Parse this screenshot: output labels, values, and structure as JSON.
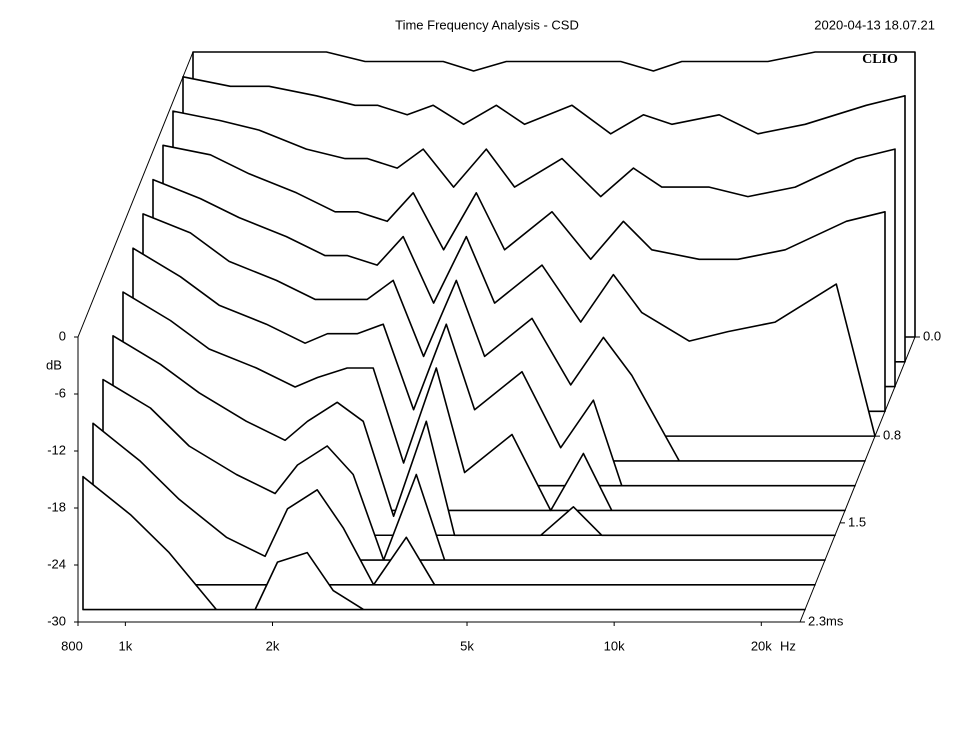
{
  "chart_data": {
    "type": "waterfall",
    "title": "Time Frequency Analysis - CSD",
    "date": "2020-04-13 18.07.21",
    "brand": "CLIO",
    "ylabel": "dB",
    "x_unit": "Hz",
    "z_unit": "ms",
    "log_x": true,
    "color": "#000000",
    "xlim": [
      800,
      24000
    ],
    "xticks": [
      800,
      {
        "value": 1000,
        "label": "1k"
      },
      {
        "value": 2000,
        "label": "2k"
      },
      {
        "value": 5000,
        "label": "5k"
      },
      {
        "value": 10000,
        "label": "10k"
      },
      {
        "value": 20000,
        "label": "20k"
      }
    ],
    "ylim": [
      -30,
      0
    ],
    "yticks": [
      0,
      -6,
      -12,
      -18,
      -24,
      -30
    ],
    "zlim": [
      0,
      2.3
    ],
    "zticks": [
      {
        "value": 0,
        "label": "0.0"
      },
      0.8,
      1.5,
      2.3
    ],
    "x": [
      800,
      1000,
      1200,
      1500,
      1800,
      2000,
      2300,
      2600,
      3000,
      3500,
      4000,
      5000,
      6000,
      7000,
      8000,
      10000,
      12000,
      15000,
      20000,
      24000
    ],
    "series": [
      {
        "time": 0.0,
        "values": [
          0,
          0,
          0,
          0,
          -1,
          -1,
          -1,
          -1,
          -2,
          -1,
          -1,
          -1,
          -1,
          -2,
          -1,
          -1,
          -1,
          0,
          0,
          0
        ]
      },
      {
        "time": 0.2,
        "values": [
          0,
          -1,
          -1,
          -2,
          -3,
          -3,
          -4,
          -3,
          -5,
          -3,
          -5,
          -3,
          -6,
          -4,
          -5,
          -4,
          -6,
          -5,
          -3,
          -2
        ]
      },
      {
        "time": 0.4,
        "values": [
          -1,
          -2,
          -3,
          -5,
          -6,
          -6,
          -7,
          -5,
          -9,
          -5,
          -9,
          -6,
          -10,
          -7,
          -9,
          -9,
          -10,
          -9,
          -6,
          -5
        ]
      },
      {
        "time": 0.6,
        "values": [
          -2,
          -3,
          -5,
          -7,
          -9,
          -9,
          -10,
          -7,
          -13,
          -7,
          -13,
          -9,
          -14,
          -10,
          -13,
          -14,
          -14,
          -13,
          -10,
          -9
        ]
      },
      {
        "time": 0.8,
        "values": [
          -3,
          -5,
          -7,
          -9,
          -11,
          -11,
          -12,
          -9,
          -16,
          -9,
          -16,
          -12,
          -18,
          -13,
          -17,
          -20,
          -19,
          -18,
          -14,
          -30
        ]
      },
      {
        "time": 1.0,
        "values": [
          -4,
          -6,
          -9,
          -11,
          -13,
          -13,
          -13,
          -11,
          -19,
          -11,
          -19,
          -15,
          -22,
          -17,
          -21,
          -30,
          -30,
          -30,
          -30,
          -30
        ]
      },
      {
        "time": 1.2,
        "values": [
          -5,
          -8,
          -11,
          -13,
          -15,
          -14,
          -14,
          -13,
          -22,
          -13,
          -22,
          -18,
          -26,
          -21,
          -30,
          -30,
          -30,
          -30,
          -30,
          -30
        ]
      },
      {
        "time": 1.4,
        "values": [
          -7,
          -10,
          -13,
          -15,
          -17,
          -16,
          -15,
          -15,
          -25,
          -15,
          -26,
          -22,
          -30,
          -24,
          -30,
          -30,
          -30,
          -30,
          -30,
          -30
        ]
      },
      {
        "time": 1.6,
        "values": [
          -9,
          -12,
          -15,
          -18,
          -20,
          -18,
          -16,
          -18,
          -28,
          -18,
          -30,
          -30,
          -30,
          -27,
          -30,
          -30,
          -30,
          -30,
          -30,
          -30
        ]
      },
      {
        "time": 1.8,
        "values": [
          -11,
          -14,
          -18,
          -21,
          -23,
          -20,
          -18,
          -21,
          -30,
          -21,
          -30,
          -30,
          -30,
          -30,
          -30,
          -30,
          -30,
          -30,
          -30,
          -30
        ]
      },
      {
        "time": 2.0,
        "values": [
          -13,
          -17,
          -21,
          -25,
          -27,
          -22,
          -20,
          -24,
          -30,
          -25,
          -30,
          -30,
          -30,
          -30,
          -30,
          -30,
          -30,
          -30,
          -30,
          -30
        ]
      },
      {
        "time": 2.2,
        "values": [
          -16,
          -20,
          -24,
          -30,
          -30,
          -25,
          -24,
          -28,
          -30,
          -30,
          -30,
          -30,
          -30,
          -30,
          -30,
          -30,
          -30,
          -30,
          -30,
          -30
        ]
      }
    ]
  }
}
